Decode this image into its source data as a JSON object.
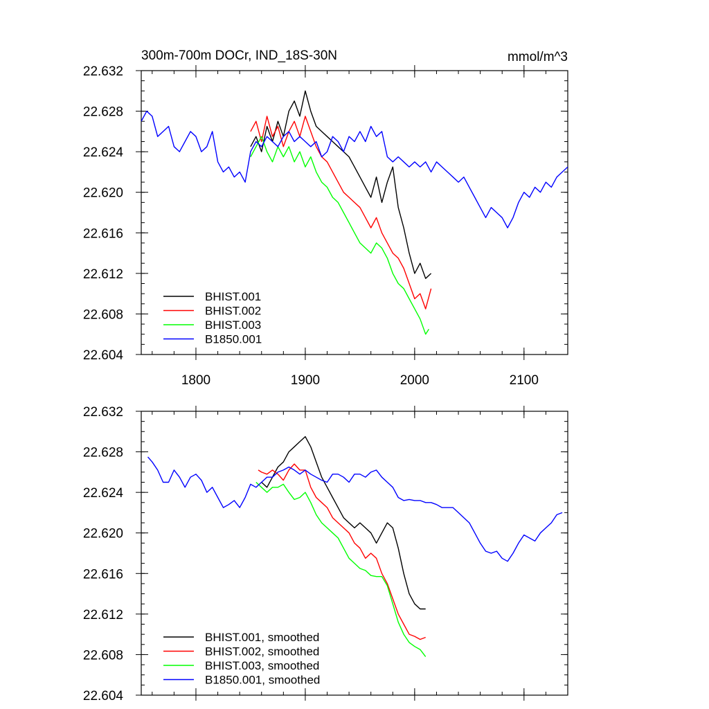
{
  "figure": {
    "title_left": "300m-700m DOCr, IND_18S-30N",
    "title_right": "mmol/m^3"
  },
  "chart_data": [
    {
      "type": "line",
      "panel": "top",
      "title": "300m-700m DOCr, IND_18S-30N",
      "units": "mmol/m^3",
      "xlim": [
        1750,
        2140
      ],
      "ylim": [
        22.604,
        22.632
      ],
      "xticks": [
        1800,
        1900,
        2000,
        2100
      ],
      "xtick_labels": [
        "1800",
        "1900",
        "2000",
        "2100"
      ],
      "yticks": [
        22.604,
        22.608,
        22.612,
        22.616,
        22.62,
        22.624,
        22.628,
        22.632
      ],
      "ytick_labels": [
        "22.604",
        "22.608",
        "22.612",
        "22.616",
        "22.620",
        "22.624",
        "22.628",
        "22.632"
      ],
      "legend_placement": "bottom-left",
      "series": [
        {
          "name": "BHIST.001",
          "color": "#000000",
          "x": [
            1850,
            1855,
            1860,
            1865,
            1870,
            1875,
            1880,
            1885,
            1890,
            1895,
            1900,
            1905,
            1910,
            1915,
            1920,
            1925,
            1930,
            1935,
            1940,
            1945,
            1950,
            1955,
            1960,
            1965,
            1970,
            1975,
            1980,
            1985,
            1990,
            1995,
            2000,
            2005,
            2010,
            2015
          ],
          "y": [
            22.6245,
            22.6255,
            22.624,
            22.6265,
            22.625,
            22.627,
            22.6255,
            22.628,
            22.629,
            22.6275,
            22.63,
            22.628,
            22.6265,
            22.626,
            22.6255,
            22.625,
            22.6245,
            22.624,
            22.6235,
            22.6225,
            22.6215,
            22.6205,
            22.6195,
            22.6215,
            22.619,
            22.621,
            22.6225,
            22.6185,
            22.6165,
            22.614,
            22.612,
            22.613,
            22.6115,
            22.612
          ]
        },
        {
          "name": "BHIST.002",
          "color": "#ff0000",
          "x": [
            1850,
            1855,
            1860,
            1865,
            1870,
            1875,
            1880,
            1885,
            1890,
            1895,
            1900,
            1905,
            1910,
            1915,
            1920,
            1925,
            1930,
            1935,
            1940,
            1945,
            1950,
            1955,
            1960,
            1965,
            1970,
            1975,
            1980,
            1985,
            1990,
            1995,
            2000,
            2005,
            2010,
            2015
          ],
          "y": [
            22.626,
            22.627,
            22.625,
            22.6275,
            22.6255,
            22.6265,
            22.6245,
            22.626,
            22.627,
            22.6255,
            22.6275,
            22.626,
            22.6245,
            22.6235,
            22.623,
            22.622,
            22.621,
            22.62,
            22.6195,
            22.619,
            22.6185,
            22.6175,
            22.6165,
            22.6175,
            22.616,
            22.615,
            22.614,
            22.6135,
            22.6125,
            22.611,
            22.6095,
            22.61,
            22.6085,
            22.6105
          ]
        },
        {
          "name": "BHIST.003",
          "color": "#00ff00",
          "x": [
            1850,
            1855,
            1860,
            1865,
            1870,
            1875,
            1880,
            1885,
            1890,
            1895,
            1900,
            1905,
            1910,
            1915,
            1920,
            1925,
            1930,
            1935,
            1940,
            1945,
            1950,
            1955,
            1960,
            1965,
            1970,
            1975,
            1980,
            1985,
            1990,
            1995,
            2000,
            2005,
            2010,
            2013
          ],
          "y": [
            22.6235,
            22.6245,
            22.6255,
            22.624,
            22.623,
            22.6245,
            22.6235,
            22.6245,
            22.623,
            22.624,
            22.6225,
            22.6235,
            22.622,
            22.621,
            22.6205,
            22.6195,
            22.619,
            22.618,
            22.617,
            22.616,
            22.615,
            22.6145,
            22.614,
            22.615,
            22.6145,
            22.6135,
            22.612,
            22.611,
            22.6105,
            22.6095,
            22.6085,
            22.6075,
            22.606,
            22.6065
          ]
        },
        {
          "name": "B1850.001",
          "color": "#0000ff",
          "x": [
            1750,
            1755,
            1760,
            1765,
            1770,
            1775,
            1780,
            1785,
            1790,
            1795,
            1800,
            1805,
            1810,
            1815,
            1820,
            1825,
            1830,
            1835,
            1840,
            1845,
            1850,
            1855,
            1860,
            1865,
            1870,
            1875,
            1880,
            1885,
            1890,
            1895,
            1900,
            1905,
            1910,
            1915,
            1920,
            1925,
            1930,
            1935,
            1940,
            1945,
            1950,
            1955,
            1960,
            1965,
            1970,
            1975,
            1980,
            1985,
            1990,
            1995,
            2000,
            2005,
            2010,
            2015,
            2020,
            2025,
            2030,
            2035,
            2040,
            2045,
            2050,
            2055,
            2060,
            2065,
            2070,
            2075,
            2080,
            2085,
            2090,
            2095,
            2100,
            2105,
            2110,
            2115,
            2120,
            2125,
            2130,
            2135,
            2140
          ],
          "y": [
            22.627,
            22.628,
            22.6275,
            22.6255,
            22.626,
            22.6265,
            22.6245,
            22.624,
            22.625,
            22.626,
            22.6255,
            22.624,
            22.6245,
            22.626,
            22.623,
            22.622,
            22.6225,
            22.6215,
            22.622,
            22.621,
            22.624,
            22.625,
            22.6245,
            22.6255,
            22.625,
            22.6245,
            22.6255,
            22.626,
            22.625,
            22.6255,
            22.625,
            22.6245,
            22.625,
            22.6235,
            22.624,
            22.6255,
            22.625,
            22.624,
            22.6255,
            22.625,
            22.626,
            22.625,
            22.6265,
            22.6255,
            22.626,
            22.6235,
            22.623,
            22.6235,
            22.623,
            22.6225,
            22.623,
            22.6225,
            22.623,
            22.622,
            22.623,
            22.6225,
            22.622,
            22.6215,
            22.621,
            22.6215,
            22.6205,
            22.6195,
            22.6185,
            22.6175,
            22.6185,
            22.618,
            22.6175,
            22.6165,
            22.6175,
            22.619,
            22.62,
            22.6195,
            22.6205,
            22.62,
            22.621,
            22.6205,
            22.6215,
            22.622,
            22.6225
          ]
        }
      ]
    },
    {
      "type": "line",
      "panel": "bottom",
      "xlim": [
        1750,
        2140
      ],
      "ylim": [
        22.604,
        22.632
      ],
      "xticks": [
        1800,
        1900,
        2000,
        2100
      ],
      "yticks": [
        22.604,
        22.608,
        22.612,
        22.616,
        22.62,
        22.624,
        22.628,
        22.632
      ],
      "ytick_labels": [
        "22.604",
        "22.608",
        "22.612",
        "22.616",
        "22.620",
        "22.624",
        "22.628",
        "22.632"
      ],
      "legend_placement": "bottom-left",
      "series": [
        {
          "name": "BHIST.001, smoothed",
          "color": "#000000",
          "x": [
            1860,
            1865,
            1870,
            1875,
            1880,
            1885,
            1890,
            1895,
            1900,
            1905,
            1910,
            1915,
            1920,
            1925,
            1930,
            1935,
            1940,
            1945,
            1950,
            1955,
            1960,
            1965,
            1970,
            1975,
            1980,
            1985,
            1990,
            1995,
            2000,
            2005,
            2010
          ],
          "y": [
            22.625,
            22.6245,
            22.6255,
            22.6265,
            22.627,
            22.628,
            22.6285,
            22.629,
            22.6295,
            22.6285,
            22.627,
            22.6255,
            22.6245,
            22.6235,
            22.6225,
            22.6215,
            22.621,
            22.6205,
            22.621,
            22.6205,
            22.62,
            22.619,
            22.62,
            22.621,
            22.6205,
            22.6185,
            22.616,
            22.614,
            22.613,
            22.6125,
            22.6125
          ]
        },
        {
          "name": "BHIST.002, smoothed",
          "color": "#ff0000",
          "x": [
            1857,
            1860,
            1865,
            1870,
            1875,
            1880,
            1885,
            1890,
            1895,
            1900,
            1905,
            1910,
            1915,
            1920,
            1925,
            1930,
            1935,
            1940,
            1945,
            1950,
            1955,
            1960,
            1965,
            1970,
            1975,
            1980,
            1985,
            1990,
            1995,
            2000,
            2005,
            2010
          ],
          "y": [
            22.6262,
            22.626,
            22.6258,
            22.6262,
            22.6258,
            22.6252,
            22.6262,
            22.6268,
            22.6262,
            22.6262,
            22.6245,
            22.6235,
            22.623,
            22.6225,
            22.6215,
            22.621,
            22.6205,
            22.62,
            22.619,
            22.6185,
            22.6175,
            22.618,
            22.6175,
            22.616,
            22.615,
            22.6135,
            22.612,
            22.611,
            22.61,
            22.6098,
            22.6095,
            22.6097
          ]
        },
        {
          "name": "BHIST.003, smoothed",
          "color": "#00ff00",
          "x": [
            1855,
            1860,
            1865,
            1870,
            1875,
            1880,
            1885,
            1890,
            1895,
            1900,
            1905,
            1910,
            1915,
            1920,
            1925,
            1930,
            1935,
            1940,
            1945,
            1950,
            1955,
            1960,
            1965,
            1970,
            1975,
            1980,
            1985,
            1990,
            1995,
            2000,
            2005,
            2010
          ],
          "y": [
            22.625,
            22.6245,
            22.624,
            22.6245,
            22.6245,
            22.6248,
            22.624,
            22.6233,
            22.6235,
            22.624,
            22.623,
            22.6218,
            22.621,
            22.6205,
            22.62,
            22.6195,
            22.6185,
            22.6175,
            22.617,
            22.6165,
            22.6163,
            22.6158,
            22.6157,
            22.6157,
            22.6148,
            22.613,
            22.6112,
            22.61,
            22.6092,
            22.6088,
            22.6085,
            22.6078
          ]
        },
        {
          "name": "B1850.001, smoothed",
          "color": "#0000ff",
          "x": [
            1756,
            1760,
            1765,
            1770,
            1775,
            1780,
            1785,
            1790,
            1795,
            1800,
            1805,
            1810,
            1815,
            1820,
            1825,
            1830,
            1835,
            1840,
            1845,
            1850,
            1855,
            1860,
            1865,
            1870,
            1875,
            1880,
            1885,
            1890,
            1895,
            1900,
            1905,
            1910,
            1915,
            1920,
            1925,
            1930,
            1935,
            1940,
            1945,
            1950,
            1955,
            1960,
            1965,
            1970,
            1975,
            1980,
            1985,
            1990,
            1995,
            2000,
            2005,
            2010,
            2015,
            2020,
            2025,
            2030,
            2035,
            2040,
            2045,
            2050,
            2055,
            2060,
            2065,
            2070,
            2075,
            2080,
            2085,
            2090,
            2095,
            2100,
            2105,
            2110,
            2115,
            2120,
            2125,
            2130,
            2135
          ],
          "y": [
            22.6275,
            22.627,
            22.6262,
            22.625,
            22.625,
            22.6262,
            22.6255,
            22.6245,
            22.6255,
            22.6258,
            22.6252,
            22.624,
            22.6245,
            22.6235,
            22.6225,
            22.6228,
            22.6232,
            22.6225,
            22.6235,
            22.6248,
            22.6245,
            22.625,
            22.6255,
            22.6255,
            22.626,
            22.6262,
            22.6265,
            22.6262,
            22.6258,
            22.6262,
            22.6258,
            22.6255,
            22.6252,
            22.625,
            22.6258,
            22.6258,
            22.6255,
            22.625,
            22.6258,
            22.6258,
            22.6255,
            22.626,
            22.6262,
            22.6255,
            22.625,
            22.6245,
            22.6235,
            22.6232,
            22.6233,
            22.6232,
            22.6232,
            22.623,
            22.623,
            22.6228,
            22.6225,
            22.6225,
            22.6225,
            22.622,
            22.6215,
            22.621,
            22.62,
            22.619,
            22.6182,
            22.618,
            22.6182,
            22.6175,
            22.6172,
            22.618,
            22.619,
            22.6198,
            22.6195,
            22.6192,
            22.62,
            22.6205,
            22.621,
            22.6218,
            22.622
          ]
        }
      ]
    }
  ]
}
